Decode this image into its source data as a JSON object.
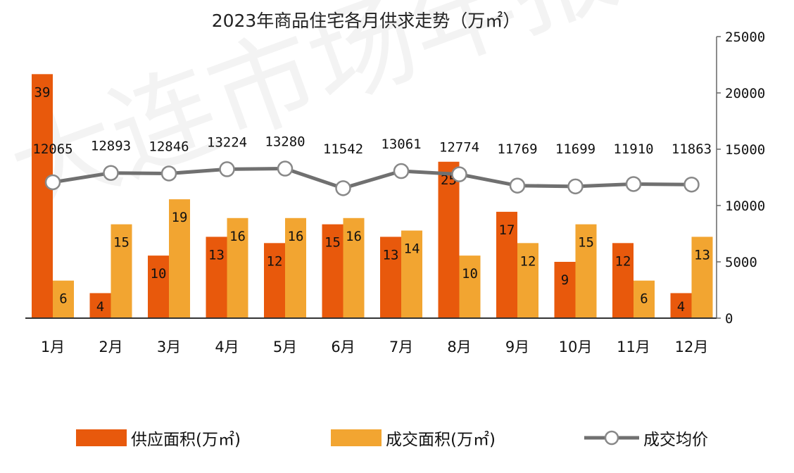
{
  "chart_data": {
    "type": "bar",
    "title": "2023年商品住宅各月供求走势（万㎡）",
    "categories": [
      "1月",
      "2月",
      "3月",
      "4月",
      "5月",
      "6月",
      "7月",
      "8月",
      "9月",
      "10月",
      "11月",
      "12月"
    ],
    "series": [
      {
        "name": "供应面积(万㎡)",
        "type": "bar",
        "axis": "left",
        "color": "#e8590c",
        "values": [
          39,
          4,
          10,
          13,
          12,
          15,
          13,
          25,
          17,
          9,
          12,
          4
        ]
      },
      {
        "name": "成交面积(万㎡)",
        "type": "bar",
        "axis": "left",
        "color": "#f2a531",
        "values": [
          6,
          15,
          19,
          16,
          16,
          16,
          14,
          10,
          12,
          15,
          6,
          13
        ]
      },
      {
        "name": "成交均价",
        "type": "line",
        "axis": "right",
        "color": "#707070",
        "values": [
          12065,
          12893,
          12846,
          13224,
          13280,
          11542,
          13061,
          12774,
          11769,
          11699,
          11910,
          11863
        ]
      }
    ],
    "left_axis_range": [
      0,
      45
    ],
    "right_axis": {
      "range": [
        0,
        25000
      ],
      "ticks": [
        "0",
        "5000",
        "10000",
        "15000",
        "20000",
        "25000"
      ]
    },
    "grid": false,
    "legend_position": "bottom",
    "watermark": "大连市场年报"
  },
  "colors": {
    "supply": "#e8590c",
    "deal": "#f2a531",
    "price_line": "#707070",
    "axis": "#333333"
  }
}
